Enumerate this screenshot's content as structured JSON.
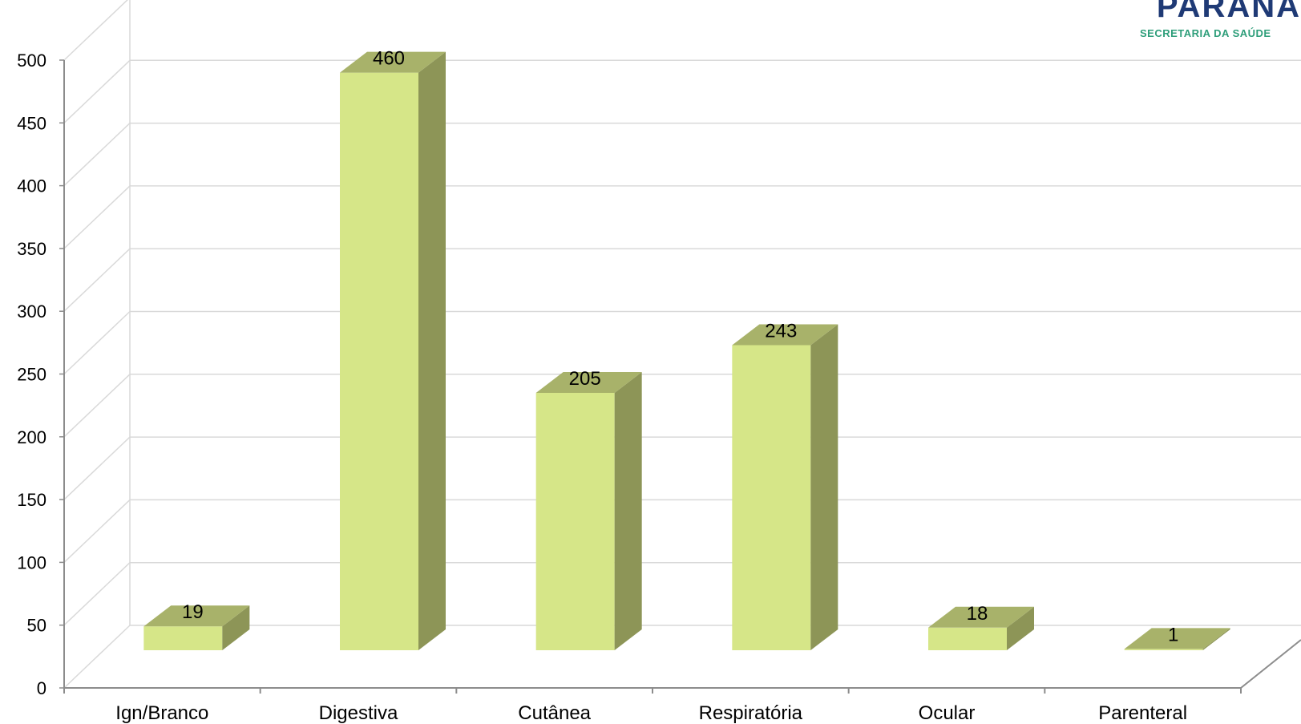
{
  "logo": {
    "title": "PARANÁ",
    "subtitle": "SECRETARIA DA SAÚDE"
  },
  "colors": {
    "bar_front": "#d6e688",
    "bar_side": "#8d9557",
    "bar_top": "#a8b26a",
    "grid": "#d9d9d9",
    "axis": "#8c8c8c"
  },
  "chart_data": {
    "type": "bar",
    "categories": [
      "Ign/Branco",
      "Digestiva",
      "Cutânea",
      "Respiratória",
      "Ocular",
      "Parenteral"
    ],
    "values": [
      19,
      460,
      205,
      243,
      18,
      1
    ],
    "ylim": [
      0,
      500
    ],
    "yticks": [
      0,
      50,
      100,
      150,
      200,
      250,
      300,
      350,
      400,
      450,
      500
    ],
    "grid": true,
    "data_labels": true
  }
}
